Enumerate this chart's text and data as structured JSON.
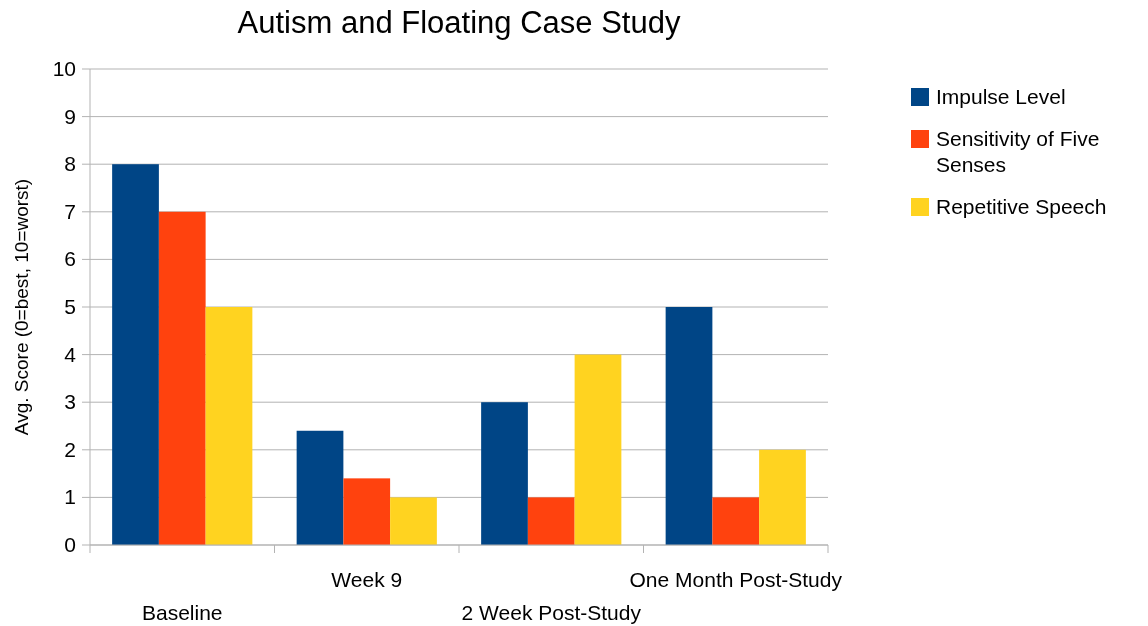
{
  "chart_data": {
    "type": "bar",
    "title": "Autism and Floating Case Study",
    "ylabel": "Avg. Score (0=best, 10=worst)",
    "categories": [
      "Baseline",
      "Week 9",
      "2 Week Post-Study",
      "One Month Post-Study"
    ],
    "series": [
      {
        "name": "Impulse Level",
        "color": "#004586",
        "values": [
          8,
          2.4,
          3,
          5
        ]
      },
      {
        "name": "Sensitivity of Five Senses",
        "color": "#ff420e",
        "values": [
          7,
          1.4,
          1,
          1
        ]
      },
      {
        "name": "Repetitive Speech",
        "color": "#ffd320",
        "values": [
          5,
          1,
          4,
          2
        ]
      }
    ],
    "ylim": [
      0,
      10
    ],
    "yticks": [
      0,
      1,
      2,
      3,
      4,
      5,
      6,
      7,
      8,
      9,
      10
    ],
    "grid": "y",
    "legend": "right"
  }
}
